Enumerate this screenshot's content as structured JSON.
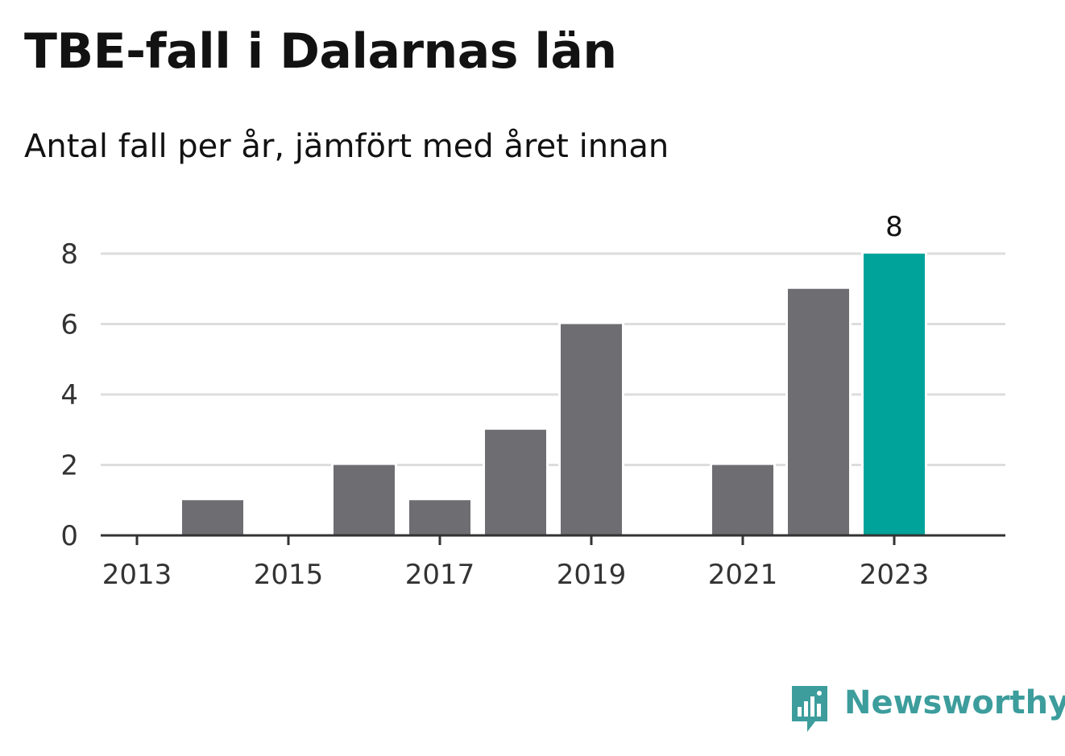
{
  "header": {
    "title": "TBE-fall i Dalarnas län",
    "subtitle": "Antal fall per år, jämfört med året innan"
  },
  "chart_data": {
    "type": "bar",
    "categories": [
      "2013",
      "2014",
      "2015",
      "2016",
      "2017",
      "2018",
      "2019",
      "2020",
      "2021",
      "2022",
      "2023"
    ],
    "x_tick_labels": [
      "2013",
      "2015",
      "2017",
      "2019",
      "2021",
      "2023"
    ],
    "values": [
      0,
      1,
      0,
      2,
      1,
      3,
      6,
      0,
      2,
      7,
      8
    ],
    "highlight": {
      "category": "2023",
      "label": "8"
    },
    "y_ticks": [
      0,
      2,
      4,
      6,
      8
    ],
    "ylim": [
      0,
      8
    ],
    "grid": true,
    "title": "TBE-fall i Dalarnas län",
    "subtitle": "Antal fall per år, jämfört med året innan",
    "xlabel": "",
    "ylabel": "",
    "colors": {
      "bar": "#6e6d72",
      "highlight": "#00a39a",
      "grid": "#dddddd",
      "axis": "#333333",
      "text": "#333333"
    }
  },
  "brand": {
    "name": "Newsworthy",
    "icon": "newsworthy-logo-icon",
    "color": "#3c9d9c"
  }
}
